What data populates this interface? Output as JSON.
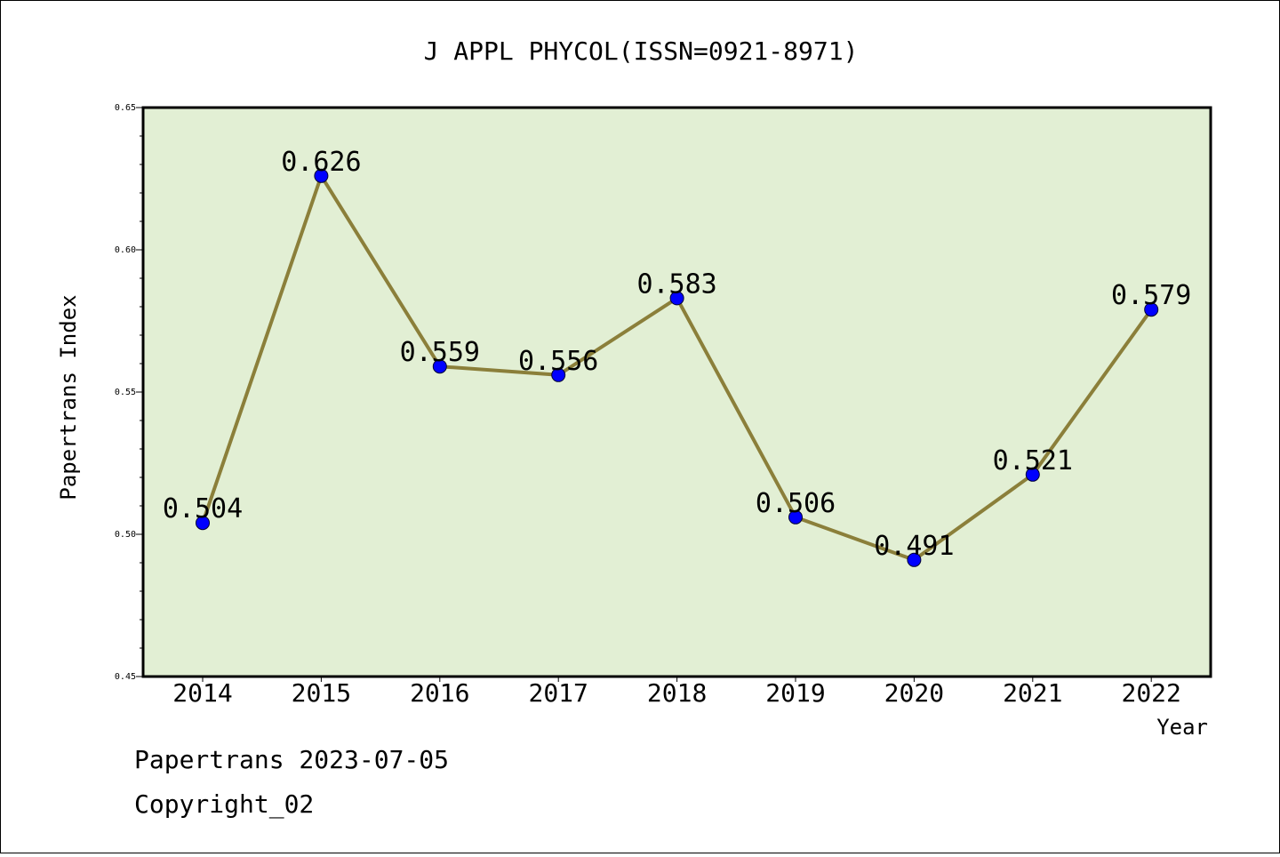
{
  "chart_data": {
    "type": "line",
    "title": "J APPL PHYCOL(ISSN=0921-8971)",
    "xlabel": "Year",
    "ylabel": "Papertrans Index",
    "categories": [
      "2014",
      "2015",
      "2016",
      "2017",
      "2018",
      "2019",
      "2020",
      "2021",
      "2022"
    ],
    "series": [
      {
        "values": [
          0.504,
          0.626,
          0.559,
          0.556,
          0.583,
          0.506,
          0.491,
          0.521,
          0.579
        ],
        "data_labels": [
          "0.504",
          "0.626",
          "0.559",
          "0.556",
          "0.583",
          "0.506",
          "0.491",
          "0.521",
          "0.579"
        ],
        "line_color": "#8b7f3a",
        "marker_color": "#0000ff"
      }
    ],
    "ylim": [
      0.45,
      0.65
    ],
    "yticks": [
      "0.45",
      "0.50",
      "0.55",
      "0.60",
      "0.65"
    ],
    "plot_background": "#e2efd4",
    "grid": false,
    "legend": "none"
  },
  "footer": {
    "line1": "Papertrans 2023-07-05",
    "line2": "Copyright_02"
  }
}
